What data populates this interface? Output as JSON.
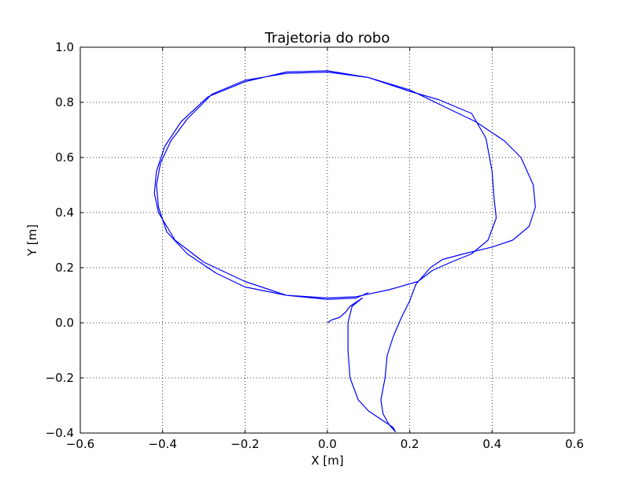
{
  "chart_data": {
    "type": "line",
    "title": "Trajetoria do robo",
    "xlabel": "X [m]",
    "ylabel": "Y [m]",
    "xlim": [
      -0.6,
      0.6
    ],
    "ylim": [
      -0.4,
      1.0
    ],
    "xticks": [
      -0.6,
      -0.4,
      -0.2,
      0.0,
      0.2,
      0.4,
      0.6
    ],
    "yticks": [
      -0.4,
      -0.2,
      0.0,
      0.2,
      0.4,
      0.6,
      0.8,
      1.0
    ],
    "xtick_labels": [
      "−0.6",
      "−0.4",
      "−0.2",
      "0.0",
      "0.2",
      "0.4",
      "0.6"
    ],
    "ytick_labels": [
      "−0.4",
      "−0.2",
      "0.0",
      "0.2",
      "0.4",
      "0.6",
      "0.8",
      "1.0"
    ],
    "grid": true,
    "line_color": "#0000ff",
    "series": [
      {
        "points": [
          [
            0.0,
            0.0
          ],
          [
            0.01,
            0.01
          ],
          [
            0.03,
            0.02
          ],
          [
            0.045,
            0.04
          ],
          [
            0.055,
            0.06
          ],
          [
            0.07,
            0.075
          ],
          [
            0.085,
            0.09
          ],
          [
            0.06,
            0.06
          ],
          [
            0.05,
            0.0
          ],
          [
            0.05,
            -0.1
          ],
          [
            0.055,
            -0.2
          ],
          [
            0.075,
            -0.28
          ],
          [
            0.1,
            -0.32
          ],
          [
            0.13,
            -0.35
          ],
          [
            0.16,
            -0.38
          ],
          [
            0.165,
            -0.395
          ],
          [
            0.15,
            -0.37
          ],
          [
            0.135,
            -0.33
          ],
          [
            0.13,
            -0.28
          ],
          [
            0.14,
            -0.2
          ],
          [
            0.145,
            -0.12
          ],
          [
            0.16,
            -0.05
          ],
          [
            0.18,
            0.02
          ],
          [
            0.2,
            0.08
          ],
          [
            0.215,
            0.14
          ],
          [
            0.25,
            0.2
          ],
          [
            0.28,
            0.23
          ],
          [
            0.33,
            0.25
          ],
          [
            0.4,
            0.275
          ],
          [
            0.45,
            0.3
          ],
          [
            0.49,
            0.35
          ],
          [
            0.505,
            0.42
          ],
          [
            0.5,
            0.5
          ],
          [
            0.47,
            0.6
          ],
          [
            0.43,
            0.66
          ],
          [
            0.36,
            0.73
          ],
          [
            0.29,
            0.78
          ],
          [
            0.2,
            0.845
          ],
          [
            0.1,
            0.89
          ],
          [
            0.0,
            0.91
          ],
          [
            -0.1,
            0.905
          ],
          [
            -0.2,
            0.88
          ],
          [
            -0.28,
            0.83
          ],
          [
            -0.34,
            0.74
          ],
          [
            -0.38,
            0.66
          ],
          [
            -0.405,
            0.58
          ],
          [
            -0.415,
            0.5
          ],
          [
            -0.41,
            0.42
          ],
          [
            -0.39,
            0.33
          ],
          [
            -0.34,
            0.25
          ],
          [
            -0.27,
            0.18
          ],
          [
            -0.2,
            0.13
          ],
          [
            -0.1,
            0.1
          ],
          [
            0.0,
            0.09
          ],
          [
            0.07,
            0.095
          ],
          [
            0.15,
            0.12
          ],
          [
            0.22,
            0.15
          ],
          [
            0.255,
            0.19
          ],
          [
            0.3,
            0.22
          ],
          [
            0.35,
            0.25
          ],
          [
            0.39,
            0.3
          ],
          [
            0.41,
            0.38
          ],
          [
            0.405,
            0.45
          ],
          [
            0.4,
            0.55
          ],
          [
            0.385,
            0.67
          ],
          [
            0.35,
            0.76
          ],
          [
            0.27,
            0.81
          ],
          [
            0.2,
            0.84
          ],
          [
            0.1,
            0.89
          ],
          [
            0.0,
            0.915
          ],
          [
            -0.1,
            0.91
          ],
          [
            -0.2,
            0.875
          ],
          [
            -0.29,
            0.82
          ],
          [
            -0.355,
            0.73
          ],
          [
            -0.395,
            0.64
          ],
          [
            -0.415,
            0.55
          ],
          [
            -0.42,
            0.47
          ],
          [
            -0.41,
            0.4
          ],
          [
            -0.37,
            0.3
          ],
          [
            -0.3,
            0.22
          ],
          [
            -0.2,
            0.15
          ],
          [
            -0.1,
            0.1
          ],
          [
            0.0,
            0.085
          ],
          [
            0.07,
            0.09
          ],
          [
            0.1,
            0.11
          ]
        ]
      }
    ]
  }
}
